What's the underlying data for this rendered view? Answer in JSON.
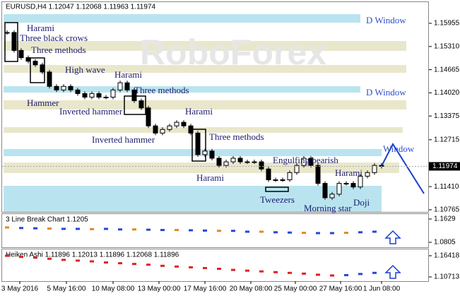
{
  "chart_data": [
    {
      "type": "candlestick",
      "title": "EURUSD,H4  1.12047 1.12068 1.11963 1.11974",
      "watermark": "RoboForex",
      "values": [
        1.157,
        1.152,
        1.15,
        1.149,
        1.148,
        1.146,
        1.142,
        1.141,
        1.142,
        1.141,
        1.14,
        1.139,
        1.14,
        1.139,
        1.139,
        1.141,
        1.143,
        1.141,
        1.138,
        1.136,
        1.131,
        1.129,
        1.13,
        1.131,
        1.132,
        1.131,
        1.129,
        1.123,
        1.124,
        1.122,
        1.12,
        1.121,
        1.122,
        1.121,
        1.121,
        1.121,
        1.119,
        1.116,
        1.116,
        1.116,
        1.118,
        1.12,
        1.122,
        1.12,
        1.115,
        1.111,
        1.112,
        1.115,
        1.115,
        1.114,
        1.117,
        1.118,
        1.12,
        1.11974
      ],
      "last_price": {
        "value": 1.11974,
        "label": "1.11974"
      },
      "ylim": [
        1.10705,
        1.16565
      ],
      "yticks": [
        1.15955,
        {
          "value": 1.1531,
          "label": "1.15310"
        },
        1.14665,
        {
          "value": 1.1402,
          "label": "1.14020"
        },
        1.13375,
        1.12715,
        1.10765,
        {
          "value": 1.1141,
          "label": "1.11410"
        }
      ],
      "annotations": [
        "Harami",
        "Three black crows",
        "Three methods",
        "High wave",
        "Harami",
        "Three methods",
        "Hammer",
        "Inverted hammer",
        "Harami",
        "Three methods",
        "Inverted hammer",
        "Engulfing bearish",
        "Harami",
        "Harami",
        "Tweezers",
        "Morning star",
        "Doji",
        "D Window",
        "D Window",
        "Window"
      ],
      "date_labels": [
        "3 May 2016",
        "5 May 16:00",
        "10 May 08:00",
        "13 May 00:00",
        "17 May 16:00",
        "20 May 08:00",
        "25 May 00:00",
        "27 May 16:00",
        "1 Jun 08:00"
      ]
    },
    {
      "type": "scatter",
      "title": "3 Line Break Chart 1.1205",
      "values": [
        1.133,
        1.131,
        1.13,
        1.129,
        1.128,
        1.128,
        1.127,
        1.128,
        1.126,
        1.126,
        1.125,
        1.124,
        1.124,
        1.123,
        1.122,
        1.121,
        1.121,
        1.118,
        1.118,
        1.116,
        1.115,
        1.114,
        1.113,
        1.113,
        1.114,
        1.116,
        1.118
      ],
      "ylim": [
        1.063,
        1.1829
      ],
      "yticks": [
        1.1629,
        1.0805
      ]
    },
    {
      "type": "scatter",
      "title": "Heiken Ashi 1.11896 1.12013 1.11896 1.12068 1.11896",
      "values": [
        1.164,
        1.161,
        1.159,
        1.156,
        1.153,
        1.151,
        1.149,
        1.146,
        1.144,
        1.142,
        1.14,
        1.137,
        1.135,
        1.133,
        1.131,
        1.129,
        1.126,
        1.124,
        1.122,
        1.12,
        1.118,
        1.116,
        1.113,
        1.111,
        1.112,
        1.115,
        1.118
      ],
      "ylim": [
        1.0957,
        1.1832
      ],
      "yticks": [
        1.16418,
        1.10713
      ]
    }
  ]
}
